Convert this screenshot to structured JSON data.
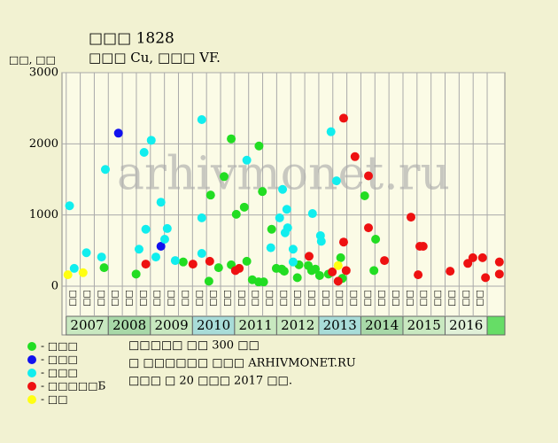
{
  "chart_data": {
    "type": "scatter",
    "title": "□□□ 1828",
    "subtitle": "□□□ Cu, □□□ VF.",
    "y_label": "□□, □□",
    "watermark": "arhivmonet.ru",
    "xlim": [
      2006.9,
      2017.42
    ],
    "ylim": [
      0,
      3000
    ],
    "yticks": [
      0,
      1000,
      2000,
      3000
    ],
    "grid": true,
    "years": [
      2007,
      2008,
      2009,
      2010,
      2011,
      2012,
      2013,
      2014,
      2015,
      2016
    ],
    "year_colors": [
      "#c8e8c0",
      "#a8d8a8",
      "#c8e8c0",
      "#a8dcd8",
      "#c8e8c0",
      "#c8e8c0",
      "#a8dcd8",
      "#a8d8a8",
      "#c8e8c0",
      "#e0f0d8"
    ],
    "quarters": [
      "□□",
      "□□",
      "□□"
    ],
    "series": [
      {
        "name": "- □□□",
        "color": "#22dd22",
        "x": [
          2007.9,
          2008.66,
          2009.78,
          2010.39,
          2010.62,
          2010.43,
          2010.75,
          2010.92,
          2010.92,
          2011.04,
          2011.23,
          2011.29,
          2011.42,
          2011.57,
          2011.69,
          2011.58,
          2011.66,
          2011.88,
          2011.99,
          2012.12,
          2012.18,
          2012.49,
          2012.53,
          2012.75,
          2012.83,
          2012.92,
          2013.02,
          2013.23,
          2013.52,
          2013.56,
          2014.09,
          2014.31,
          2014.35
        ],
        "values": [
          260,
          170,
          340,
          70,
          260,
          1280,
          1540,
          2070,
          300,
          1010,
          1110,
          350,
          90,
          60,
          60,
          1970,
          1330,
          800,
          250,
          240,
          210,
          120,
          300,
          290,
          220,
          240,
          150,
          170,
          400,
          110,
          1270,
          220,
          660
        ]
      },
      {
        "name": "- □□□",
        "color": "#1111ee",
        "x": [
          2008.24,
          2009.25
        ],
        "values": [
          2150,
          560
        ]
      },
      {
        "name": "- □□□",
        "color": "#11eeee",
        "x": [
          2007.08,
          2007.19,
          2007.48,
          2007.84,
          2007.93,
          2008.73,
          2008.85,
          2008.89,
          2009.02,
          2009.13,
          2009.25,
          2009.34,
          2009.4,
          2009.59,
          2010.22,
          2010.22,
          2010.22,
          2011.29,
          2011.86,
          2012.07,
          2012.14,
          2012.2,
          2012.24,
          2012.26,
          2012.39,
          2012.39,
          2012.85,
          2013.04,
          2013.06,
          2013.29,
          2013.42
        ],
        "values": [
          1130,
          250,
          470,
          410,
          1640,
          520,
          1880,
          800,
          2050,
          410,
          1180,
          660,
          810,
          360,
          2340,
          960,
          460,
          1770,
          540,
          960,
          1360,
          750,
          1080,
          820,
          520,
          340,
          1020,
          710,
          630,
          2170,
          1480
        ]
      },
      {
        "name": "- □□□□□Б",
        "color": "#ee1111",
        "x": [
          2008.89,
          2010.01,
          2010.41,
          2011.02,
          2011.11,
          2012.77,
          2013.32,
          2013.46,
          2013.59,
          2013.59,
          2013.65,
          2013.86,
          2014.18,
          2014.18,
          2014.56,
          2015.19,
          2015.36,
          2015.4,
          2015.48,
          2016.12,
          2016.54,
          2016.66,
          2016.89,
          2016.96,
          2017.29,
          2017.29
        ],
        "values": [
          310,
          310,
          350,
          220,
          250,
          420,
          200,
          70,
          2360,
          620,
          220,
          1820,
          1550,
          820,
          360,
          970,
          160,
          560,
          560,
          210,
          320,
          400,
          400,
          120,
          340,
          170
        ]
      },
      {
        "name": "- □□",
        "color": "#ffff11",
        "x": [
          2007.04,
          2007.4,
          2013.46
        ],
        "values": [
          160,
          190,
          290
        ]
      }
    ],
    "notes": [
      "□□□□□ □□ 300 □□",
      "□ □□□□□□ □□□ ARHIVMONET.RU",
      "□□□ □ 20 □□□ 2017 □□."
    ]
  }
}
